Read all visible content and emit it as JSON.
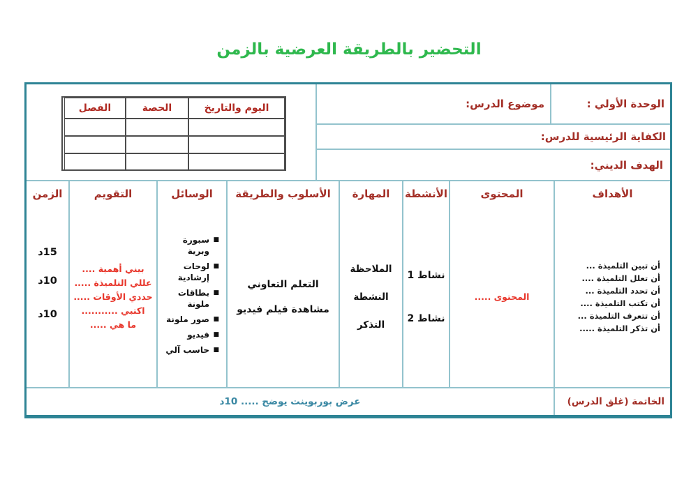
{
  "title": "التحضير بالطريقة العرضية بالزمن",
  "colors": {
    "title_green": "#2eb84d",
    "label_dark_red": "#a32e26",
    "accent_red": "#e8362b",
    "border_teal": "#2e8495",
    "grid_teal": "#93c3cd",
    "footer_teal": "#3a88a3"
  },
  "info": {
    "unit_label": "الوحدة الأولي :",
    "topic_label": "موضوع الدرس:",
    "competency_label": "الكفاية الرئيسية للدرس:",
    "religious_goal_label": "الهدف الديني:"
  },
  "schedule_table": {
    "headers": [
      "اليوم والتاريخ",
      "الحصة",
      "الفصل"
    ],
    "empty_rows": 3
  },
  "main_table": {
    "headers": [
      "الأهداف",
      "المحتوى",
      "الأنشطة",
      "المهارة",
      "الأسلوب والطريقة",
      "الوسائل",
      "التقويم",
      "الزمن"
    ],
    "objectives": [
      "أن تبين التلميذة ...",
      "أن تعلل التلميذة ....",
      "أن تحدد التلميذة ...",
      "أن تكتب التلميذة ....",
      "أن تتعرف التلميذة ...",
      "أن تذكر التلميذة ....."
    ],
    "content": "المحتوى .....",
    "activities": [
      "نشاط 1",
      "نشاط 2"
    ],
    "skills": [
      "الملاحظة",
      "النشطة",
      "التذكر"
    ],
    "methods": [
      "التعلم التعاوني",
      "مشاهدة فيلم فيديو"
    ],
    "tools": [
      "سبورة\nوبرية",
      "لوحات\nإرشادية",
      "بطاقات\nملونة",
      "صور ملونة",
      "فيديو",
      "حاسب آلي"
    ],
    "evaluation": [
      "بيني أهمية ....",
      "عللي التلميذة .....",
      "حددي الأوقات .....",
      "اكتبي ...........",
      "ما هي ....."
    ],
    "times": [
      "15د",
      "10د",
      "10د"
    ]
  },
  "footer": {
    "closing_label": "الخاتمة (غلق الدرس)",
    "closing_text": "عرض بوربوينت يوضح ..... 10د"
  }
}
